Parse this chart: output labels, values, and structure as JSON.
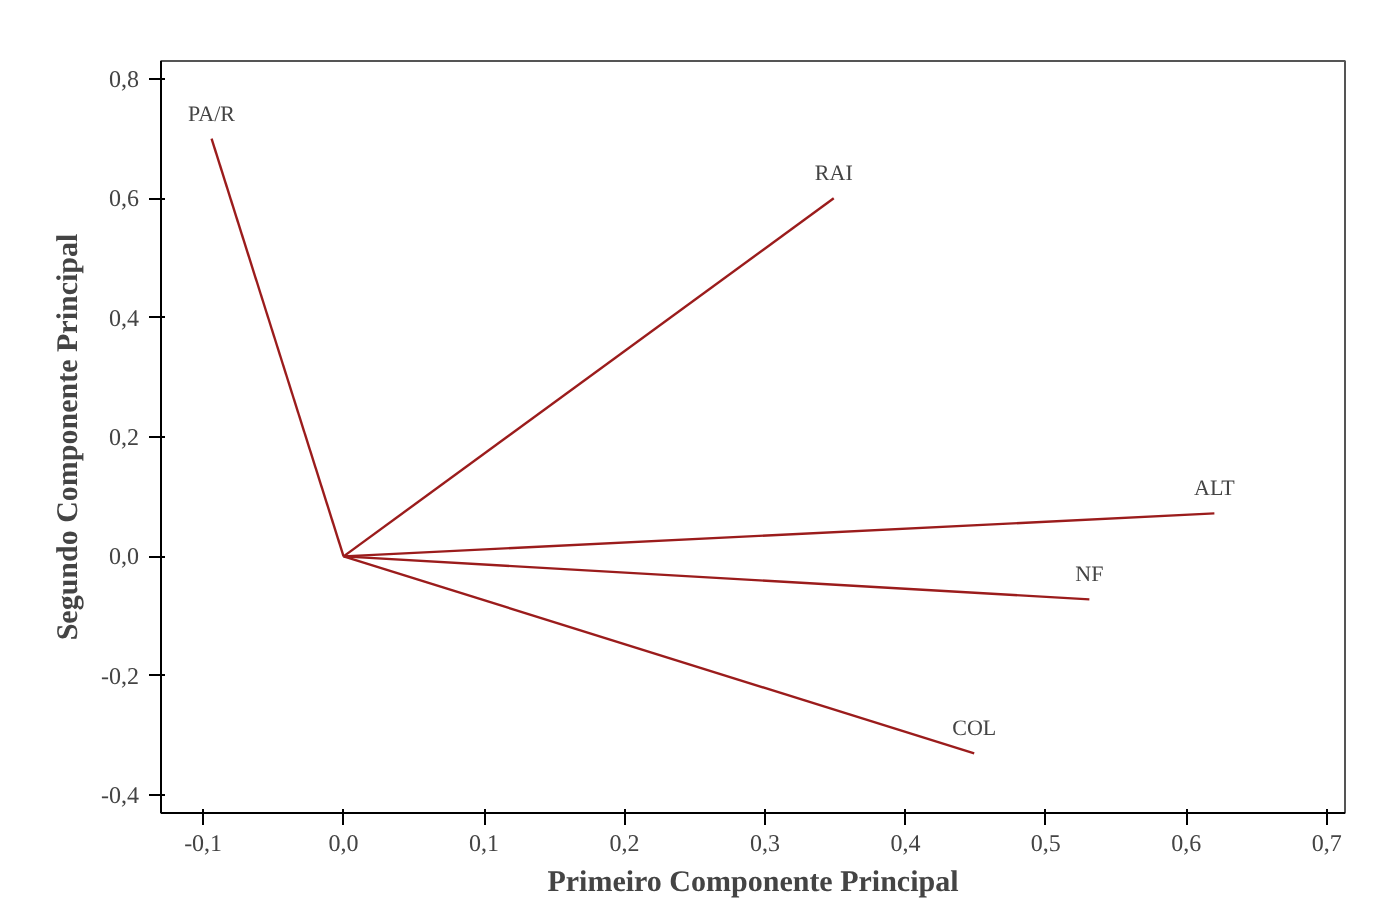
{
  "chart_data": {
    "type": "line",
    "xlabel": "Primeiro Componente Principal",
    "ylabel": "Segundo Componente Principal",
    "xlim": [
      -0.13,
      0.713
    ],
    "ylim": [
      -0.43,
      0.83
    ],
    "xticks": [
      {
        "value": -0.1,
        "label": "-0,1"
      },
      {
        "value": 0.0,
        "label": "0,0"
      },
      {
        "value": 0.1,
        "label": "0,1"
      },
      {
        "value": 0.2,
        "label": "0,2"
      },
      {
        "value": 0.3,
        "label": "0,3"
      },
      {
        "value": 0.4,
        "label": "0,4"
      },
      {
        "value": 0.5,
        "label": "0,5"
      },
      {
        "value": 0.6,
        "label": "0,6"
      },
      {
        "value": 0.7,
        "label": "0,7"
      }
    ],
    "yticks": [
      {
        "value": -0.4,
        "label": "-0,4"
      },
      {
        "value": -0.2,
        "label": "-0,2"
      },
      {
        "value": 0.0,
        "label": "0,0"
      },
      {
        "value": 0.2,
        "label": "0,2"
      },
      {
        "value": 0.4,
        "label": "0,4"
      },
      {
        "value": 0.6,
        "label": "0,6"
      },
      {
        "value": 0.8,
        "label": "0,8"
      }
    ],
    "grid": false,
    "marker": "none",
    "line_style": "solid",
    "series": [
      {
        "name": "PA/R",
        "color": "#9b1c1c",
        "x": [
          0,
          -0.094
        ],
        "values": [
          0,
          0.7
        ]
      },
      {
        "name": "RAI",
        "color": "#9b1c1c",
        "x": [
          0,
          0.349
        ],
        "values": [
          0,
          0.6
        ]
      },
      {
        "name": "ALT",
        "color": "#9b1c1c",
        "x": [
          0,
          0.62
        ],
        "values": [
          0,
          0.072
        ]
      },
      {
        "name": "NF",
        "color": "#9b1c1c",
        "x": [
          0,
          0.531
        ],
        "values": [
          0,
          -0.072
        ]
      },
      {
        "name": "COL",
        "color": "#9b1c1c",
        "x": [
          0,
          0.449
        ],
        "values": [
          0,
          -0.33
        ]
      }
    ]
  }
}
